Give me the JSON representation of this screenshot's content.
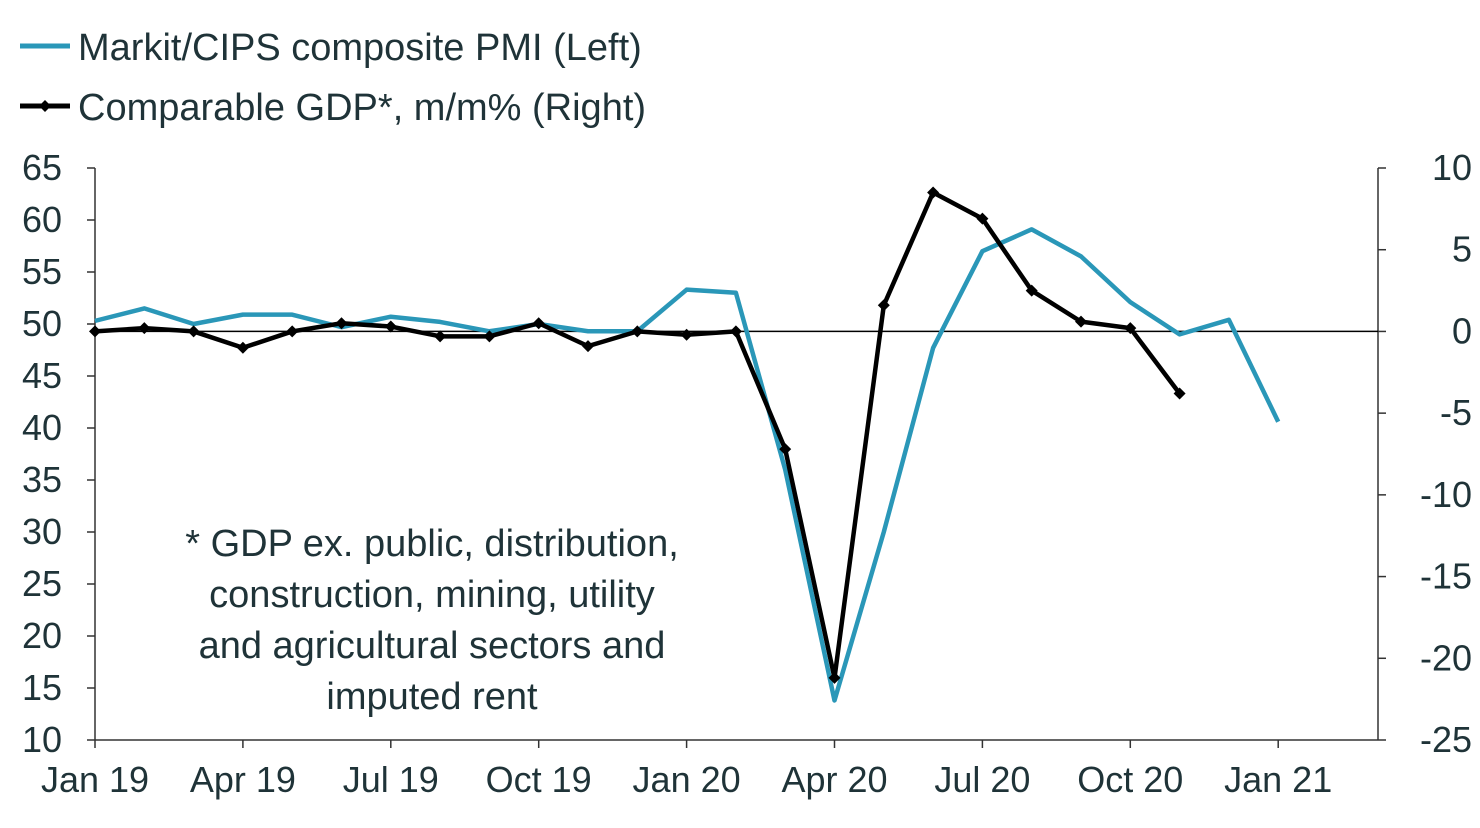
{
  "chart_data": {
    "type": "line",
    "x": [
      "Jan 19",
      "Feb 19",
      "Mar 19",
      "Apr 19",
      "May 19",
      "Jun 19",
      "Jul 19",
      "Aug 19",
      "Sep 19",
      "Oct 19",
      "Nov 19",
      "Dec 19",
      "Jan 20",
      "Feb 20",
      "Mar 20",
      "Apr 20",
      "May 20",
      "Jun 20",
      "Jul 20",
      "Aug 20",
      "Sep 20",
      "Oct 20",
      "Nov 20",
      "Dec 20",
      "Jan 21"
    ],
    "x_tick_labels": [
      "Jan 19",
      "Apr 19",
      "Jul 19",
      "Oct 19",
      "Jan 20",
      "Apr 20",
      "Jul 20",
      "Oct 20",
      "Jan 21"
    ],
    "series": [
      {
        "name": "Markit/CIPS composite PMI (Left)",
        "axis": "left",
        "color": "#2a97b8",
        "values": [
          50.3,
          51.5,
          50.0,
          50.9,
          50.9,
          49.7,
          50.7,
          50.2,
          49.3,
          50.0,
          49.3,
          49.3,
          53.3,
          53.0,
          36.0,
          13.8,
          30.0,
          47.7,
          57.0,
          59.1,
          56.5,
          52.1,
          49.0,
          50.4,
          40.6
        ]
      },
      {
        "name": "Comparable GDP*, m/m% (Right)",
        "axis": "right",
        "color": "#000000",
        "marker": "diamond",
        "values": [
          0.0,
          0.2,
          0.0,
          -1.0,
          0.0,
          0.5,
          0.3,
          -0.3,
          -0.3,
          0.5,
          -0.9,
          0.0,
          -0.2,
          0.0,
          -7.2,
          -21.2,
          1.6,
          8.5,
          6.9,
          2.5,
          0.6,
          0.2,
          -3.8,
          null,
          null
        ]
      }
    ],
    "left_axis": {
      "ylim": [
        10,
        65
      ],
      "ticks": [
        "65",
        "60",
        "55",
        "50",
        "45",
        "40",
        "35",
        "30",
        "25",
        "20",
        "15",
        "10"
      ]
    },
    "right_axis": {
      "ylim": [
        -25,
        10
      ],
      "ticks": [
        "10",
        "5",
        "0",
        "-5",
        "-10",
        "-15",
        "-20",
        "-25"
      ]
    },
    "zero_line": true,
    "legend_position": "top-left",
    "annotation": [
      "* GDP ex. public, distribution,",
      "construction, mining, utility",
      "and agricultural sectors and",
      "imputed rent"
    ]
  }
}
